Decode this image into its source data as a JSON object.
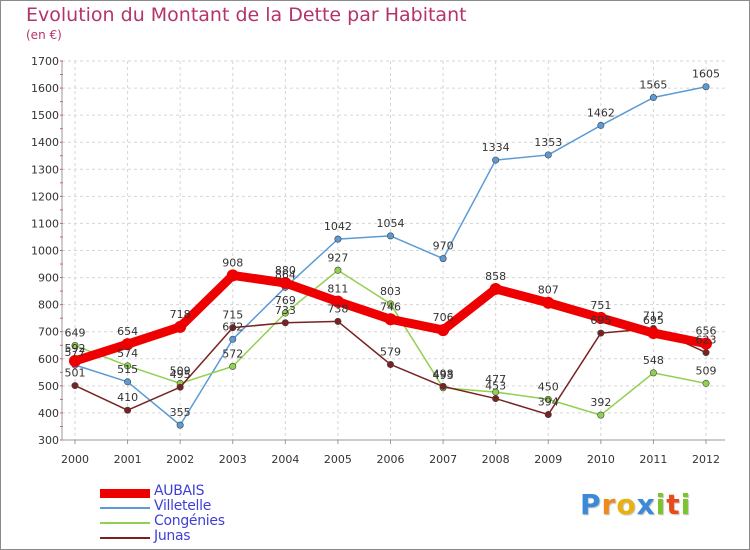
{
  "title": "Evolution du Montant de la Dette par Habitant",
  "subtitle": "(en €)",
  "brand": {
    "letters": [
      "P",
      "r",
      "o",
      "x",
      "i",
      "t",
      "i"
    ],
    "colors": [
      "#3a8ad6",
      "#f08a1c",
      "#e8b010",
      "#3a8ad6",
      "#7cc42c",
      "#e84a1c",
      "#7cc42c"
    ]
  },
  "chart_data": {
    "type": "line",
    "x": [
      "2000",
      "2001",
      "2002",
      "2003",
      "2004",
      "2005",
      "2006",
      "2007",
      "2008",
      "2009",
      "2010",
      "2011",
      "2012"
    ],
    "ylim": [
      300,
      1700
    ],
    "yticks": [
      300,
      400,
      500,
      600,
      700,
      800,
      900,
      1000,
      1100,
      1200,
      1300,
      1400,
      1500,
      1600,
      1700
    ],
    "grid": true,
    "legend_position": "bottom-left",
    "series": [
      {
        "name": "AUBAIS",
        "color": "#ee0000",
        "values": [
          592,
          654,
          718,
          908,
          880,
          811,
          746,
          706,
          858,
          807,
          751,
          695,
          656
        ]
      },
      {
        "name": "Villetelle",
        "color": "#5b9bd5",
        "values": [
          577,
          515,
          355,
          672,
          864,
          1042,
          1054,
          970,
          1334,
          1353,
          1462,
          1565,
          1605
        ]
      },
      {
        "name": "Congénies",
        "color": "#92d050",
        "values": [
          649,
          574,
          509,
          572,
          769,
          927,
          803,
          493,
          477,
          450,
          392,
          548,
          509
        ]
      },
      {
        "name": "Junas",
        "color": "#7a2222",
        "values": [
          501,
          410,
          495,
          715,
          733,
          738,
          579,
          498,
          453,
          394,
          695,
          712,
          623
        ]
      }
    ]
  }
}
